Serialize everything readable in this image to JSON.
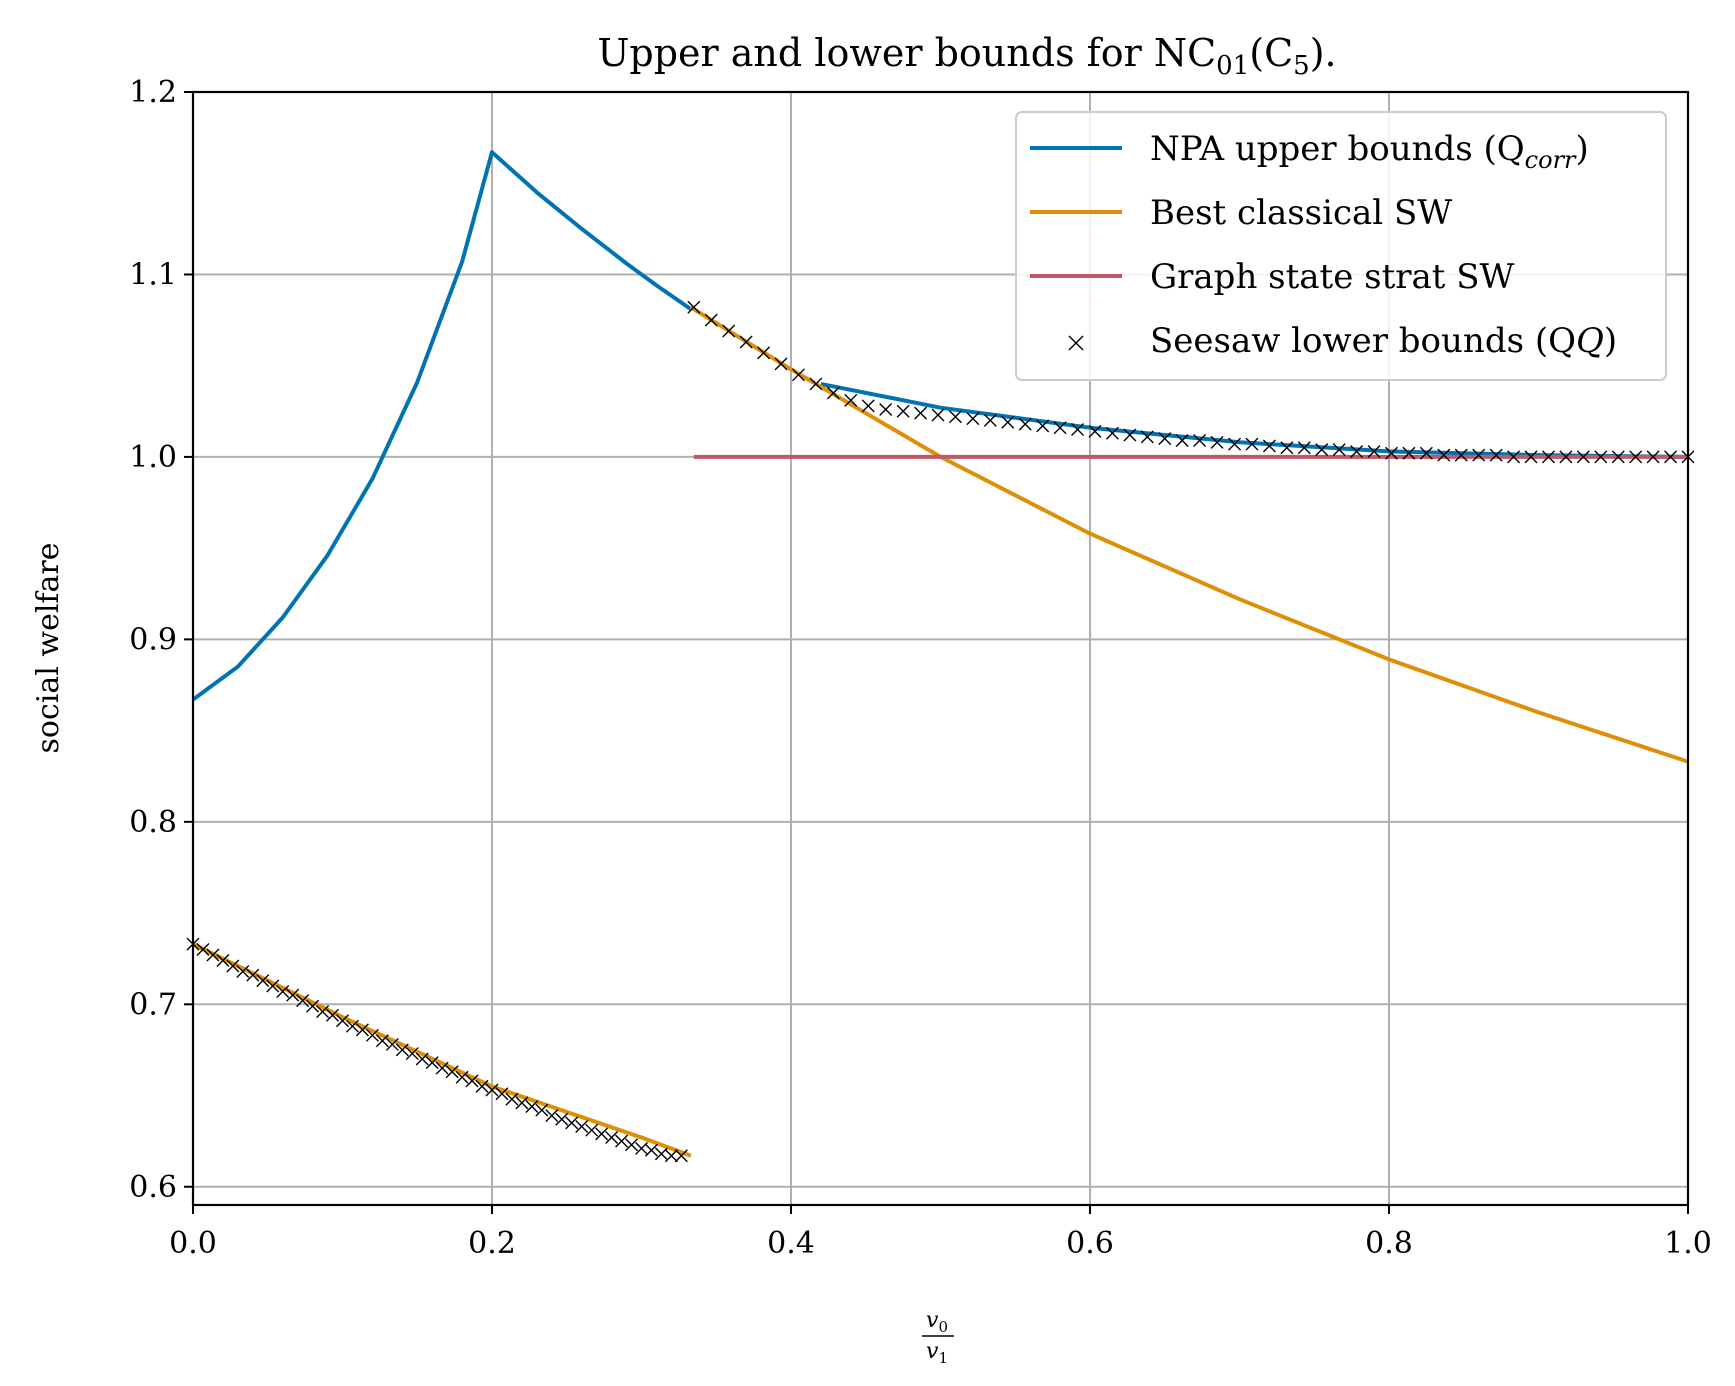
{
  "chart_data": {
    "type": "line",
    "title": "Upper and lower bounds for NC",
    "title_sub01": "01",
    "title_mid": "(C",
    "title_sub5": "5",
    "title_end": ").",
    "ylabel": "social welfare",
    "xlabel_num": "v",
    "xlabel_num_sub": "0",
    "xlabel_den": "v",
    "xlabel_den_sub": "1",
    "xlim": [
      0.0,
      1.0
    ],
    "ylim": [
      0.59,
      1.2
    ],
    "xticks": [
      "0.0",
      "0.2",
      "0.4",
      "0.6",
      "0.8",
      "1.0"
    ],
    "yticks": [
      "0.6",
      "0.7",
      "0.8",
      "0.9",
      "1.0",
      "1.1",
      "1.2"
    ],
    "grid": true,
    "legend_position": "top-right",
    "series": [
      {
        "name": "NPA upper bounds (Q",
        "name_sub": "corr",
        "name_end": ")",
        "kind": "line",
        "color": "#0173b2",
        "segments": [
          [
            [
              0.0,
              0.867
            ],
            [
              0.03,
              0.885
            ],
            [
              0.06,
              0.912
            ],
            [
              0.09,
              0.946
            ],
            [
              0.12,
              0.988
            ],
            [
              0.15,
              1.041
            ],
            [
              0.18,
              1.107
            ],
            [
              0.2,
              1.167
            ],
            [
              0.23,
              1.145
            ],
            [
              0.26,
              1.125
            ],
            [
              0.29,
              1.106
            ],
            [
              0.31,
              1.094
            ],
            [
              0.333,
              1.081
            ]
          ],
          [
            [
              0.42,
              1.04
            ],
            [
              0.5,
              1.027
            ],
            [
              0.6,
              1.016
            ],
            [
              0.7,
              1.008
            ],
            [
              0.8,
              1.003
            ],
            [
              0.9,
              1.001
            ],
            [
              1.0,
              1.0
            ]
          ]
        ]
      },
      {
        "name": "Best classical SW",
        "kind": "line",
        "color": "#de8f05",
        "segments": [
          [
            [
              0.0,
              0.733
            ],
            [
              0.1,
              0.693
            ],
            [
              0.2,
              0.655
            ],
            [
              0.3,
              0.627
            ],
            [
              0.333,
              0.617
            ]
          ],
          [
            [
              0.333,
              1.082
            ],
            [
              0.4,
              1.048
            ],
            [
              0.5,
              1.0
            ],
            [
              0.6,
              0.958
            ],
            [
              0.7,
              0.922
            ],
            [
              0.8,
              0.889
            ],
            [
              0.9,
              0.86
            ],
            [
              1.0,
              0.833
            ]
          ]
        ]
      },
      {
        "name": "Graph state strat SW",
        "kind": "line",
        "color": "#c0586a",
        "segments": [
          [
            [
              0.335,
              1.0
            ],
            [
              1.0,
              1.0
            ]
          ]
        ]
      },
      {
        "name": "Seesaw lower bounds (Q",
        "name_end": ")",
        "kind": "marker",
        "marker": "x",
        "color": "#000000",
        "x": [
          0.0,
          0.00667,
          0.01333,
          0.02,
          0.02667,
          0.03333,
          0.04,
          0.04667,
          0.05333,
          0.06,
          0.06667,
          0.07333,
          0.08,
          0.08667,
          0.09333,
          0.1,
          0.10667,
          0.11333,
          0.12,
          0.12667,
          0.13333,
          0.14,
          0.14667,
          0.15333,
          0.16,
          0.16667,
          0.17333,
          0.18,
          0.18667,
          0.19333,
          0.2,
          0.20667,
          0.21333,
          0.22,
          0.22667,
          0.23333,
          0.24,
          0.24667,
          0.25333,
          0.26,
          0.26667,
          0.27333,
          0.28,
          0.28667,
          0.29333,
          0.3,
          0.30667,
          0.31333,
          0.32,
          0.32667,
          0.335,
          0.34667,
          0.35833,
          0.37,
          0.38167,
          0.39333,
          0.405,
          0.41667,
          0.42833,
          0.44,
          0.45167,
          0.46333,
          0.475,
          0.48667,
          0.49833,
          0.51,
          0.52167,
          0.53333,
          0.545,
          0.55667,
          0.56833,
          0.58,
          0.59167,
          0.60333,
          0.615,
          0.62667,
          0.63833,
          0.65,
          0.66167,
          0.67333,
          0.685,
          0.69667,
          0.70833,
          0.72,
          0.73167,
          0.74333,
          0.755,
          0.76667,
          0.77833,
          0.79,
          0.80167,
          0.81333,
          0.825,
          0.83667,
          0.84833,
          0.86,
          0.87167,
          0.88333,
          0.895,
          0.90667,
          0.91833,
          0.93,
          0.94167,
          0.95333,
          0.965,
          0.97667,
          0.98833,
          1.0
        ],
        "y": [
          0.733,
          0.73,
          0.727,
          0.724,
          0.721,
          0.718,
          0.716,
          0.713,
          0.71,
          0.707,
          0.705,
          0.702,
          0.699,
          0.696,
          0.694,
          0.691,
          0.688,
          0.686,
          0.683,
          0.68,
          0.678,
          0.675,
          0.673,
          0.67,
          0.668,
          0.665,
          0.663,
          0.66,
          0.658,
          0.655,
          0.653,
          0.651,
          0.648,
          0.646,
          0.644,
          0.642,
          0.639,
          0.637,
          0.635,
          0.633,
          0.631,
          0.629,
          0.627,
          0.625,
          0.623,
          0.621,
          0.62,
          0.618,
          0.617,
          0.617,
          1.082,
          1.075,
          1.069,
          1.063,
          1.057,
          1.051,
          1.045,
          1.04,
          1.035,
          1.031,
          1.028,
          1.026,
          1.025,
          1.024,
          1.023,
          1.022,
          1.021,
          1.02,
          1.019,
          1.018,
          1.017,
          1.016,
          1.015,
          1.014,
          1.013,
          1.012,
          1.011,
          1.01,
          1.009,
          1.009,
          1.008,
          1.007,
          1.007,
          1.006,
          1.005,
          1.005,
          1.004,
          1.004,
          1.003,
          1.003,
          1.002,
          1.002,
          1.002,
          1.001,
          1.001,
          1.001,
          1.001,
          1.0,
          1.0,
          1.0,
          1.0,
          1.0,
          1.0,
          1.0,
          1.0,
          1.0,
          1.0,
          1.0
        ]
      }
    ]
  }
}
